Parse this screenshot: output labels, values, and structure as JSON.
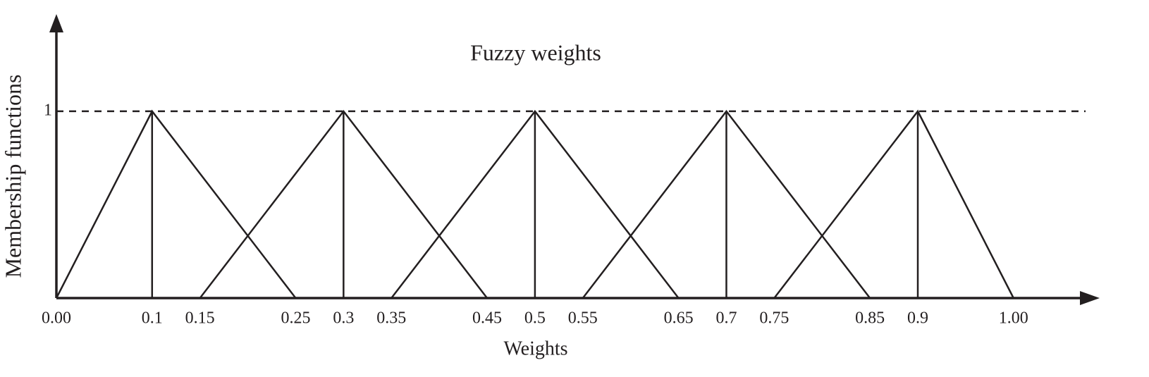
{
  "chart_data": {
    "type": "line",
    "title": "Fuzzy weights",
    "xlabel": "Weights",
    "ylabel": "Membership functions",
    "color": "#231f20",
    "grid": true,
    "grid_style": "dashed",
    "xlim": [
      0,
      1.09
    ],
    "ylim": [
      0,
      1.52
    ],
    "xticks": [
      {
        "value": 0,
        "label": "0.00"
      },
      0.1,
      0.15,
      0.25,
      0.3,
      0.35,
      0.45,
      0.5,
      0.55,
      0.65,
      0.7,
      0.75,
      0.85,
      0.9,
      {
        "value": 1,
        "label": "1.00"
      }
    ],
    "yticks": [
      1
    ],
    "series": [
      {
        "x": [
          0,
          0.1,
          0.25
        ],
        "values": [
          0,
          1,
          0
        ]
      },
      {
        "x": [
          0.15,
          0.3,
          0.45
        ],
        "values": [
          0,
          1,
          0
        ]
      },
      {
        "x": [
          0.35,
          0.5,
          0.65
        ],
        "values": [
          0,
          1,
          0
        ]
      },
      {
        "x": [
          0.55,
          0.7,
          0.85
        ],
        "values": [
          0,
          1,
          0
        ]
      },
      {
        "x": [
          0.75,
          0.9,
          1
        ],
        "values": [
          0,
          1,
          0
        ]
      }
    ]
  }
}
